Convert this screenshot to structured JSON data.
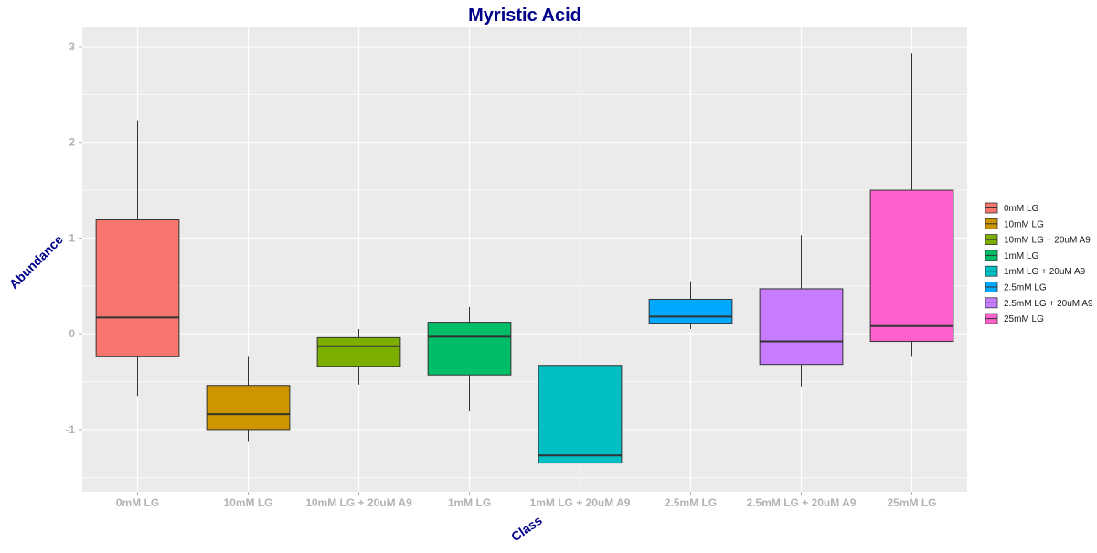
{
  "colors": {
    "panel_bg": "#EBEBEB",
    "grid": "#FFFFFF",
    "title": "#00008B",
    "axis_title": "#00008B",
    "tick_label": "#B3B3B3",
    "box_outline": "#333333",
    "legend_text": "#1A1A1A"
  },
  "chart_data": {
    "type": "box",
    "title": "Myristic Acid",
    "xlabel": "Class",
    "ylabel": "Abundance",
    "ylim": [
      -1.65,
      3.2
    ],
    "yticks": [
      -1,
      0,
      1,
      2,
      3
    ],
    "ytick_labels": [
      "-1",
      "0",
      "1",
      "2",
      "3"
    ],
    "grid": true,
    "legend_position": "right",
    "categories": [
      "0mM LG",
      "10mM LG",
      "10mM LG + 20uM A9",
      "1mM LG",
      "1mM LG + 20uM A9",
      "2.5mM LG",
      "2.5mM LG + 20uM A9",
      "25mM LG"
    ],
    "series": [
      {
        "name": "0mM LG",
        "color": "#F8766D",
        "whisker_low": -0.65,
        "q1": -0.24,
        "median": 0.17,
        "q3": 1.19,
        "whisker_high": 2.23
      },
      {
        "name": "10mM LG",
        "color": "#CD9600",
        "whisker_low": -1.13,
        "q1": -1.0,
        "median": -0.84,
        "q3": -0.54,
        "whisker_high": -0.24
      },
      {
        "name": "10mM LG + 20uM A9",
        "color": "#7CAE00",
        "whisker_low": -0.53,
        "q1": -0.34,
        "median": -0.13,
        "q3": -0.04,
        "whisker_high": 0.05
      },
      {
        "name": "1mM LG",
        "color": "#00BE67",
        "whisker_low": -0.81,
        "q1": -0.43,
        "median": -0.03,
        "q3": 0.12,
        "whisker_high": 0.28
      },
      {
        "name": "1mM LG + 20uM A9",
        "color": "#00BFC4",
        "whisker_low": -1.43,
        "q1": -1.35,
        "median": -1.27,
        "q3": -0.33,
        "whisker_high": 0.63
      },
      {
        "name": "2.5mM LG",
        "color": "#00A9FF",
        "whisker_low": 0.05,
        "q1": 0.11,
        "median": 0.18,
        "q3": 0.36,
        "whisker_high": 0.55
      },
      {
        "name": "2.5mM LG + 20uM A9",
        "color": "#C77CFF",
        "whisker_low": -0.55,
        "q1": -0.32,
        "median": -0.08,
        "q3": 0.47,
        "whisker_high": 1.03
      },
      {
        "name": "25mM LG",
        "color": "#FF61CC",
        "whisker_low": -0.24,
        "q1": -0.08,
        "median": 0.08,
        "q3": 1.5,
        "whisker_high": 2.93
      }
    ]
  }
}
